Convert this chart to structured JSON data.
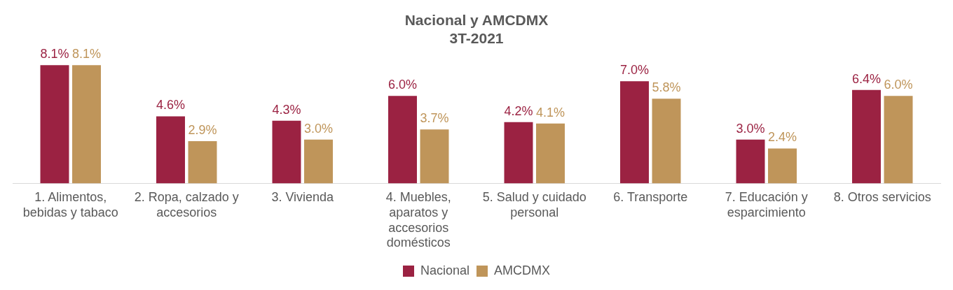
{
  "chart_data": {
    "type": "bar",
    "title": "Nacional y AMCDMX\n3T-2021",
    "categories": [
      "1. Alimentos, bebidas y tabaco",
      "2. Ropa, calzado y accesorios",
      "3. Vivienda",
      "4. Muebles, aparatos y accesorios domésticos",
      "5. Salud y cuidado personal",
      "6. Transporte",
      "7. Educación y esparcimiento",
      "8. Otros servicios"
    ],
    "series": [
      {
        "name": "Nacional",
        "color": "#9b2242",
        "values": [
          8.1,
          4.6,
          4.3,
          6.0,
          4.2,
          7.0,
          3.0,
          6.4
        ],
        "value_labels": [
          "8.1%",
          "4.6%",
          "4.3%",
          "6.0%",
          "4.2%",
          "7.0%",
          "3.0%",
          "6.4%"
        ]
      },
      {
        "name": "AMCDMX",
        "color": "#bf955a",
        "values": [
          8.1,
          2.9,
          3.0,
          3.7,
          4.1,
          5.8,
          2.4,
          6.0
        ],
        "value_labels": [
          "8.1%",
          "2.9%",
          "3.0%",
          "3.7%",
          "4.1%",
          "5.8%",
          "2.4%",
          "6.0%"
        ]
      }
    ],
    "grid": false,
    "legend": "bottom",
    "tick_labels": "x"
  }
}
